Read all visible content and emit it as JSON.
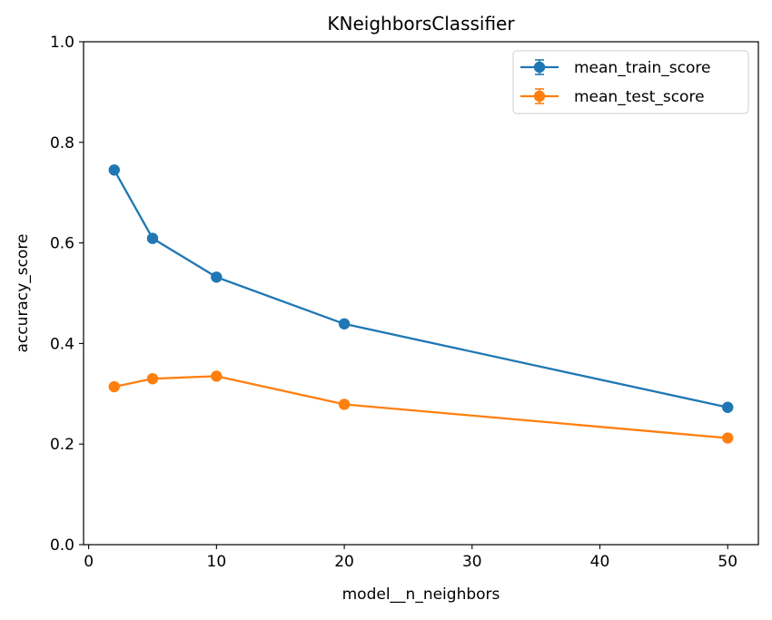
{
  "chart_data": {
    "type": "line",
    "title": "KNeighborsClassifier",
    "xlabel": "model__n_neighbors",
    "ylabel": "accuracy_score",
    "xlim": [
      -0.4,
      52.4
    ],
    "ylim": [
      0.0,
      1.0
    ],
    "x": [
      2,
      5,
      10,
      20,
      50
    ],
    "xticks": [
      0,
      10,
      20,
      30,
      40,
      50
    ],
    "yticks": [
      0.0,
      0.2,
      0.4,
      0.6,
      0.8,
      1.0
    ],
    "xtick_labels": [
      "0",
      "10",
      "20",
      "30",
      "40",
      "50"
    ],
    "ytick_labels": [
      "0.0",
      "0.2",
      "0.4",
      "0.6",
      "0.8",
      "1.0"
    ],
    "grid": false,
    "legend_position": "top-right",
    "series": [
      {
        "name": "mean_train_score",
        "color": "#1f77b4",
        "values": [
          0.745,
          0.609,
          0.532,
          0.439,
          0.273
        ]
      },
      {
        "name": "mean_test_score",
        "color": "#ff7f0e",
        "values": [
          0.314,
          0.33,
          0.335,
          0.279,
          0.212
        ]
      }
    ]
  }
}
